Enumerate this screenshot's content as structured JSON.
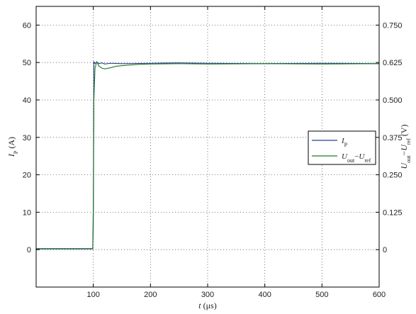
{
  "chart_data": {
    "type": "line",
    "xlabel": {
      "symbol": "t",
      "unit": "(μs)"
    },
    "ylabel_left": {
      "symbol": "I",
      "sub": "P",
      "unit": "(A)"
    },
    "ylabel_right": {
      "parts": [
        {
          "t": "U",
          "sub": false
        },
        {
          "t": "out",
          "sub": true
        },
        {
          "t": "−",
          "sub": false
        },
        {
          "t": "U",
          "sub": false
        },
        {
          "t": "ref",
          "sub": true
        },
        {
          "t": " (V)",
          "sub": false
        }
      ]
    },
    "xlim": [
      0,
      600
    ],
    "ylim_left": [
      -10,
      65
    ],
    "ylim_right": [
      -0.125,
      0.8125
    ],
    "x_ticks": [
      100,
      200,
      300,
      400,
      500,
      600
    ],
    "y_ticks_left": [
      0,
      10,
      20,
      30,
      40,
      50,
      60
    ],
    "y_ticks_right": [
      0,
      0.125,
      0.25,
      0.375,
      0.5,
      0.625,
      0.75
    ],
    "x_tick_labels": [
      "100",
      "200",
      "300",
      "400",
      "500",
      "600"
    ],
    "y_tick_labels_left": [
      "0",
      "10",
      "20",
      "30",
      "40",
      "50",
      "60"
    ],
    "y_tick_labels_right": [
      "0",
      "0.125",
      "0.250",
      "0.375",
      "0.500",
      "0.625",
      "0.750"
    ],
    "grid": true,
    "legend_position": "right-middle",
    "series": [
      {
        "name": "IP",
        "label": {
          "main": "I",
          "sub": "P"
        },
        "color": "#2b3d9a",
        "axis": "left",
        "points": [
          [
            0,
            0.2
          ],
          [
            99,
            0.2
          ],
          [
            100,
            12
          ],
          [
            101,
            50.3
          ],
          [
            103,
            49.7
          ],
          [
            106,
            50.1
          ],
          [
            110,
            49.7
          ],
          [
            115,
            49.9
          ],
          [
            120,
            49.6
          ],
          [
            130,
            49.8
          ],
          [
            150,
            49.7
          ],
          [
            200,
            49.8
          ],
          [
            250,
            49.9
          ],
          [
            300,
            49.8
          ],
          [
            400,
            49.7
          ],
          [
            500,
            49.8
          ],
          [
            600,
            49.7
          ]
        ]
      },
      {
        "name": "Uout−Uref",
        "label": [
          {
            "t": "U",
            "sub": false
          },
          {
            "t": "out",
            "sub": true
          },
          {
            "t": "−",
            "sub": false
          },
          {
            "t": "U",
            "sub": false
          },
          {
            "t": "ref",
            "sub": true
          }
        ],
        "color": "#1f7a2a",
        "axis": "left",
        "points": [
          [
            0,
            0.3
          ],
          [
            99,
            0.3
          ],
          [
            100,
            6
          ],
          [
            101,
            40
          ],
          [
            103,
            48.5
          ],
          [
            106,
            50.2
          ],
          [
            110,
            49.0
          ],
          [
            115,
            48.5
          ],
          [
            120,
            48.3
          ],
          [
            130,
            48.6
          ],
          [
            140,
            49.0
          ],
          [
            160,
            49.3
          ],
          [
            180,
            49.5
          ],
          [
            200,
            49.6
          ],
          [
            250,
            49.7
          ],
          [
            300,
            49.6
          ],
          [
            400,
            49.7
          ],
          [
            500,
            49.6
          ],
          [
            600,
            49.7
          ]
        ]
      }
    ]
  }
}
